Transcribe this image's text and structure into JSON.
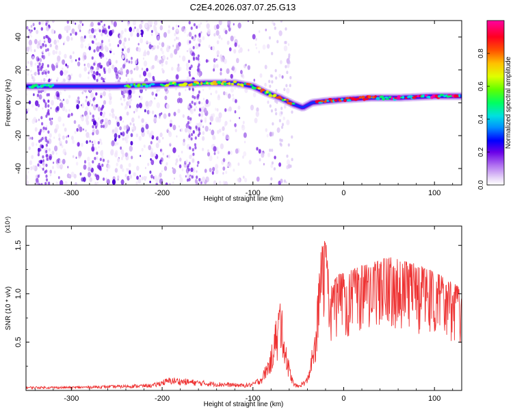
{
  "title": "C2E4.2026.037.07.25.G13",
  "chart_data": [
    {
      "type": "heatmap",
      "xlabel": "Height of straight line (km)",
      "ylabel": "Frequency (Hz)",
      "xlim": [
        -350,
        130
      ],
      "ylim": [
        -50,
        50
      ],
      "x_ticks": [
        -300,
        -200,
        -100,
        0,
        100
      ],
      "y_ticks": [
        -40,
        -20,
        0,
        20,
        40
      ],
      "colorbar": {
        "label": "Normalized spectral amplitude",
        "range": [
          0,
          1
        ],
        "ticks": [
          0.0,
          0.2,
          0.4,
          0.6,
          0.8
        ],
        "tick_labels": [
          "0.0",
          "0.2",
          "0.4",
          "0.6",
          "0.8"
        ]
      },
      "ridge": {
        "height_km": [
          -350,
          -300,
          -250,
          -200,
          -150,
          -120,
          -100,
          -85,
          -70,
          -55,
          -45,
          -35,
          -20,
          0,
          30,
          60,
          100,
          130
        ],
        "frequency_hz": [
          10,
          10,
          10,
          11,
          12,
          12,
          10,
          6,
          3,
          -1,
          -3,
          0,
          1,
          2,
          3,
          3,
          4,
          4
        ]
      }
    },
    {
      "type": "line",
      "xlabel": "Height of straight line (km)",
      "ylabel": "SNR (10 * v/v)",
      "y_multiplier": "(x10⁴)",
      "xlim": [
        -350,
        130
      ],
      "ylim": [
        0,
        1.7
      ],
      "x_ticks": [
        -300,
        -200,
        -100,
        0,
        100
      ],
      "y_ticks": [
        0.5,
        1.0,
        1.5
      ],
      "y_tick_labels": [
        "0.5",
        "1.0",
        "1.5"
      ],
      "series": [
        {
          "color": "#ee3333",
          "x": [
            -350,
            -300,
            -250,
            -210,
            -200,
            -190,
            -150,
            -110,
            -100,
            -90,
            -80,
            -75,
            -70,
            -65,
            -60,
            -55,
            -50,
            -40,
            -35,
            -30,
            -28,
            -25,
            -22,
            -20,
            -15,
            -10,
            -5,
            0,
            10,
            20,
            30,
            40,
            50,
            60,
            70,
            80,
            90,
            100,
            110,
            120,
            130
          ],
          "y": [
            0.03,
            0.03,
            0.04,
            0.05,
            0.08,
            0.1,
            0.07,
            0.05,
            0.06,
            0.12,
            0.3,
            0.55,
            0.7,
            0.45,
            0.2,
            0.06,
            0.04,
            0.1,
            0.3,
            0.7,
            1.2,
            1.5,
            1.55,
            1.6,
            1.05,
            1.15,
            1.2,
            1.22,
            1.25,
            1.3,
            1.32,
            1.35,
            1.38,
            1.36,
            1.33,
            1.31,
            1.27,
            1.22,
            1.18,
            1.12,
            1.05
          ]
        }
      ]
    }
  ]
}
